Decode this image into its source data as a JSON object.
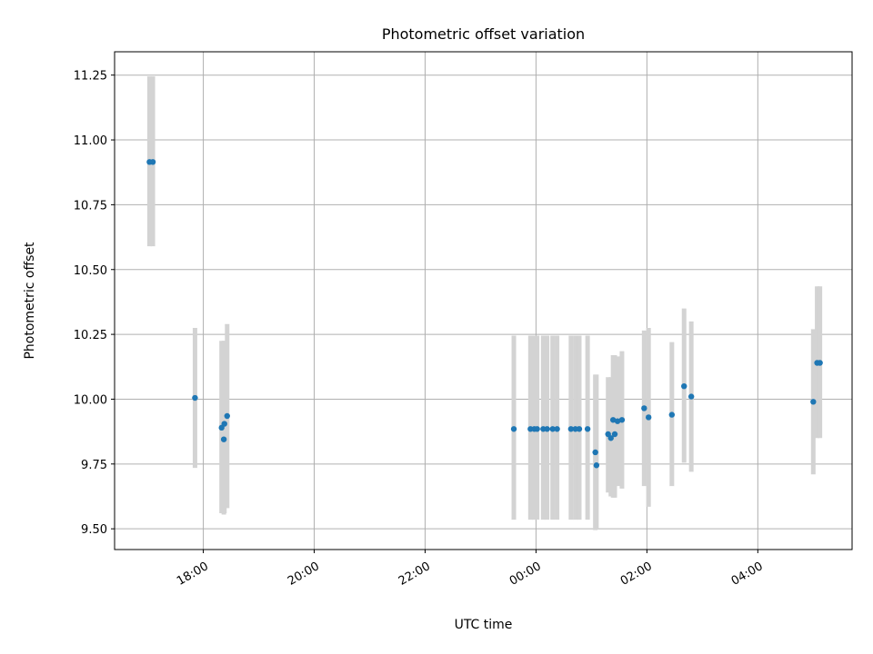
{
  "chart_data": {
    "type": "scatter",
    "title": "Photometric offset variation",
    "xlabel": "UTC time",
    "ylabel": "Photometric offset",
    "x_unit": "hours UTC (values after 24 are past midnight)",
    "xlim": [
      16.4,
      29.7
    ],
    "ylim": [
      9.42,
      11.34
    ],
    "x_ticks": [
      {
        "value": 18,
        "label": "18:00"
      },
      {
        "value": 20,
        "label": "20:00"
      },
      {
        "value": 22,
        "label": "22:00"
      },
      {
        "value": 24,
        "label": "00:00"
      },
      {
        "value": 26,
        "label": "02:00"
      },
      {
        "value": 28,
        "label": "04:00"
      }
    ],
    "y_ticks": [
      "9.50",
      "9.75",
      "10.00",
      "10.25",
      "10.50",
      "10.75",
      "11.00",
      "11.25"
    ],
    "grid": true,
    "colors": {
      "points": "#1f77b4",
      "error_bars": "#d3d3d3"
    },
    "points": [
      {
        "x": 17.03,
        "y": 10.915,
        "lo": 10.59,
        "hi": 11.245
      },
      {
        "x": 17.09,
        "y": 10.915,
        "lo": 10.59,
        "hi": 11.245
      },
      {
        "x": 17.85,
        "y": 10.005,
        "lo": 9.735,
        "hi": 10.275
      },
      {
        "x": 18.33,
        "y": 9.89,
        "lo": 9.56,
        "hi": 10.225
      },
      {
        "x": 18.37,
        "y": 9.845,
        "lo": 9.555,
        "hi": 10.225
      },
      {
        "x": 18.38,
        "y": 9.905,
        "lo": 9.56,
        "hi": 10.225
      },
      {
        "x": 18.43,
        "y": 9.935,
        "lo": 9.58,
        "hi": 10.29
      },
      {
        "x": 23.6,
        "y": 9.885,
        "lo": 9.535,
        "hi": 10.245
      },
      {
        "x": 23.9,
        "y": 9.885,
        "lo": 9.535,
        "hi": 10.245
      },
      {
        "x": 23.97,
        "y": 9.885,
        "lo": 9.535,
        "hi": 10.245
      },
      {
        "x": 24.02,
        "y": 9.885,
        "lo": 9.535,
        "hi": 10.245
      },
      {
        "x": 24.13,
        "y": 9.885,
        "lo": 9.535,
        "hi": 10.245
      },
      {
        "x": 24.2,
        "y": 9.885,
        "lo": 9.535,
        "hi": 10.245
      },
      {
        "x": 24.3,
        "y": 9.885,
        "lo": 9.535,
        "hi": 10.245
      },
      {
        "x": 24.38,
        "y": 9.885,
        "lo": 9.535,
        "hi": 10.245
      },
      {
        "x": 24.63,
        "y": 9.885,
        "lo": 9.535,
        "hi": 10.245
      },
      {
        "x": 24.71,
        "y": 9.885,
        "lo": 9.535,
        "hi": 10.245
      },
      {
        "x": 24.78,
        "y": 9.885,
        "lo": 9.535,
        "hi": 10.245
      },
      {
        "x": 24.93,
        "y": 9.885,
        "lo": 9.535,
        "hi": 10.245
      },
      {
        "x": 25.07,
        "y": 9.795,
        "lo": 9.495,
        "hi": 10.095
      },
      {
        "x": 25.09,
        "y": 9.745,
        "lo": 9.5,
        "hi": 10.095
      },
      {
        "x": 25.3,
        "y": 9.865,
        "lo": 9.64,
        "hi": 10.085
      },
      {
        "x": 25.35,
        "y": 9.85,
        "lo": 9.625,
        "hi": 10.085
      },
      {
        "x": 25.39,
        "y": 9.92,
        "lo": 9.62,
        "hi": 10.17
      },
      {
        "x": 25.42,
        "y": 9.865,
        "lo": 9.62,
        "hi": 10.17
      },
      {
        "x": 25.47,
        "y": 9.915,
        "lo": 9.665,
        "hi": 10.165
      },
      {
        "x": 25.55,
        "y": 9.92,
        "lo": 9.655,
        "hi": 10.185
      },
      {
        "x": 25.95,
        "y": 9.965,
        "lo": 9.665,
        "hi": 10.265
      },
      {
        "x": 26.03,
        "y": 9.93,
        "lo": 9.585,
        "hi": 10.275
      },
      {
        "x": 26.45,
        "y": 9.94,
        "lo": 9.665,
        "hi": 10.22
      },
      {
        "x": 26.67,
        "y": 10.05,
        "lo": 9.755,
        "hi": 10.35
      },
      {
        "x": 26.8,
        "y": 10.01,
        "lo": 9.72,
        "hi": 10.3
      },
      {
        "x": 29.0,
        "y": 9.99,
        "lo": 9.71,
        "hi": 10.27
      },
      {
        "x": 29.07,
        "y": 10.14,
        "lo": 9.85,
        "hi": 10.435
      },
      {
        "x": 29.12,
        "y": 10.14,
        "lo": 9.85,
        "hi": 10.435
      }
    ]
  }
}
